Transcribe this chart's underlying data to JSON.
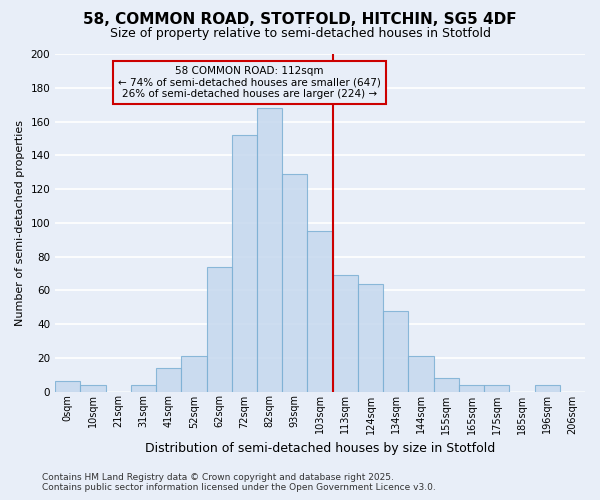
{
  "title_line1": "58, COMMON ROAD, STOTFOLD, HITCHIN, SG5 4DF",
  "title_line2": "Size of property relative to semi-detached houses in Stotfold",
  "xlabel": "Distribution of semi-detached houses by size in Stotfold",
  "ylabel": "Number of semi-detached properties",
  "categories": [
    "0sqm",
    "10sqm",
    "21sqm",
    "31sqm",
    "41sqm",
    "52sqm",
    "62sqm",
    "72sqm",
    "82sqm",
    "93sqm",
    "103sqm",
    "113sqm",
    "124sqm",
    "134sqm",
    "144sqm",
    "155sqm",
    "165sqm",
    "175sqm",
    "185sqm",
    "196sqm",
    "206sqm"
  ],
  "values": [
    6,
    4,
    0,
    4,
    14,
    21,
    74,
    152,
    168,
    129,
    95,
    69,
    64,
    48,
    21,
    8,
    4,
    4,
    0,
    4,
    0
  ],
  "bar_color": "#c5d8ee",
  "bar_edge_color": "#7bafd4",
  "annotation_title": "58 COMMON ROAD: 112sqm",
  "annotation_line2": "← 74% of semi-detached houses are smaller (647)",
  "annotation_line3": "26% of semi-detached houses are larger (224) →",
  "annotation_box_color": "#cc0000",
  "footer_line1": "Contains HM Land Registry data © Crown copyright and database right 2025.",
  "footer_line2": "Contains public sector information licensed under the Open Government Licence v3.0.",
  "background_color": "#e8eef8",
  "grid_color": "#ffffff",
  "vline_x": 10.5,
  "vline_color": "#cc0000",
  "ylim": [
    0,
    200
  ],
  "yticks": [
    0,
    20,
    40,
    60,
    80,
    100,
    120,
    140,
    160,
    180,
    200
  ],
  "title1_fontsize": 11,
  "title2_fontsize": 9,
  "ylabel_fontsize": 8,
  "xlabel_fontsize": 9,
  "tick_fontsize": 7,
  "footer_fontsize": 6.5,
  "annot_fontsize": 7.5
}
